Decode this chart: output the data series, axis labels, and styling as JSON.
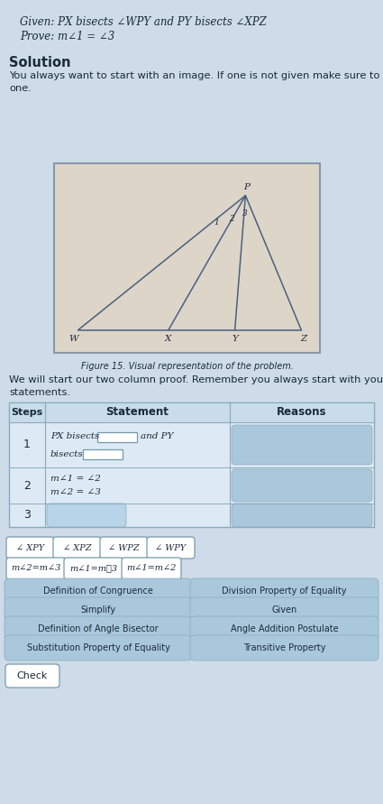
{
  "page_bg": "#cddce8",
  "title_given": "Given: PX bisects ∠WPY and PY bisects ∠XPZ",
  "title_prove": "Prove: m∠1 = ∠3",
  "solution_header": "Solution",
  "solution_text1": "You always want to start with an image. If one is not given make sure to draw",
  "solution_text2": "one.",
  "figure_caption": "Figure 15. Visual representation of the problem.",
  "proof_intro1": "We will start our two column proof. Remember you always start with your given",
  "proof_intro2": "statements.",
  "drag_row1": [
    "∠ XPY",
    "∠ XPZ",
    "∠ WPZ",
    "∠ WPY"
  ],
  "drag_row2": [
    "m∠2=m∠3",
    "m∠1=m∢3",
    "m∠1=m∠2"
  ],
  "drag_left": [
    "Definition of Congruence",
    "Simplify",
    "Definition of Angle Bisector",
    "Substitution Property of Equality"
  ],
  "drag_right": [
    "Division Property of Equality",
    "Given",
    "Angle Addition Postulate",
    "Transitive Property"
  ],
  "check_btn": "Check",
  "blue_btn": "#aac8dc",
  "white_btn": "#ffffff",
  "table_bg": "#ddeaf5",
  "table_header_bg": "#c8dcea",
  "row_bg": "#eaf3fa",
  "text_dark": "#1a2a3a",
  "text_med": "#2a3a50",
  "fig_bg": "#ddd5c8",
  "fig_border": "#8898aa",
  "line_col": "#4a6080",
  "border_col": "#8aabbb"
}
